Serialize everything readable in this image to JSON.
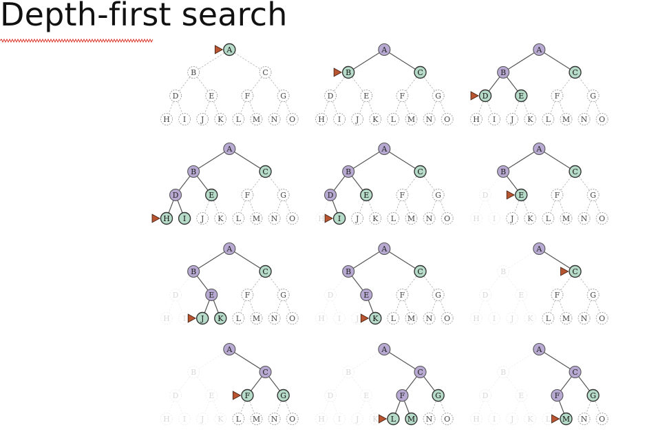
{
  "title": "Depth-first search",
  "colors": {
    "explored": "#b7a9d2",
    "frontier": "#b6dcc9",
    "unexplored_stroke": "#9a9a9a",
    "removed": "#eeeeee",
    "edge": "#555555",
    "pointer": "#b8542f",
    "spell_underline": "#d9362b"
  },
  "tree": {
    "nodes": [
      "A",
      "B",
      "C",
      "D",
      "E",
      "F",
      "G",
      "H",
      "I",
      "J",
      "K",
      "L",
      "M",
      "N",
      "O"
    ],
    "edges": [
      [
        "A",
        "B"
      ],
      [
        "A",
        "C"
      ],
      [
        "B",
        "D"
      ],
      [
        "B",
        "E"
      ],
      [
        "C",
        "F"
      ],
      [
        "C",
        "G"
      ],
      [
        "D",
        "H"
      ],
      [
        "D",
        "I"
      ],
      [
        "E",
        "J"
      ],
      [
        "E",
        "K"
      ],
      [
        "F",
        "L"
      ],
      [
        "F",
        "M"
      ],
      [
        "G",
        "N"
      ],
      [
        "G",
        "O"
      ]
    ]
  },
  "steps": [
    {
      "explored": [],
      "frontier": [
        "A"
      ],
      "removed": [],
      "current": "A"
    },
    {
      "explored": [
        "A"
      ],
      "frontier": [
        "B",
        "C"
      ],
      "removed": [],
      "current": "B"
    },
    {
      "explored": [
        "A",
        "B"
      ],
      "frontier": [
        "C",
        "D",
        "E"
      ],
      "removed": [],
      "current": "D"
    },
    {
      "explored": [
        "A",
        "B",
        "D"
      ],
      "frontier": [
        "C",
        "E",
        "H",
        "I"
      ],
      "removed": [],
      "current": "H"
    },
    {
      "explored": [
        "A",
        "B",
        "D"
      ],
      "frontier": [
        "C",
        "E",
        "I"
      ],
      "removed": [
        "H"
      ],
      "current": "I"
    },
    {
      "explored": [
        "A",
        "B"
      ],
      "frontier": [
        "C",
        "E"
      ],
      "removed": [
        "D",
        "H",
        "I"
      ],
      "current": "E"
    },
    {
      "explored": [
        "A",
        "B",
        "E"
      ],
      "frontier": [
        "C",
        "J",
        "K"
      ],
      "removed": [
        "D",
        "H",
        "I"
      ],
      "current": "J"
    },
    {
      "explored": [
        "A",
        "B",
        "E"
      ],
      "frontier": [
        "C",
        "K"
      ],
      "removed": [
        "D",
        "H",
        "I",
        "J"
      ],
      "current": "K"
    },
    {
      "explored": [
        "A"
      ],
      "frontier": [
        "C"
      ],
      "removed": [
        "B",
        "D",
        "E",
        "H",
        "I",
        "J",
        "K"
      ],
      "current": "C"
    },
    {
      "explored": [
        "A",
        "C"
      ],
      "frontier": [
        "F",
        "G"
      ],
      "removed": [
        "B",
        "D",
        "E",
        "H",
        "I",
        "J",
        "K"
      ],
      "current": "F"
    },
    {
      "explored": [
        "A",
        "C",
        "F"
      ],
      "frontier": [
        "G",
        "L",
        "M"
      ],
      "removed": [
        "B",
        "D",
        "E",
        "H",
        "I",
        "J",
        "K"
      ],
      "current": "L"
    },
    {
      "explored": [
        "A",
        "C",
        "F"
      ],
      "frontier": [
        "G",
        "M"
      ],
      "removed": [
        "B",
        "D",
        "E",
        "H",
        "I",
        "J",
        "K",
        "L"
      ],
      "current": "M"
    }
  ]
}
